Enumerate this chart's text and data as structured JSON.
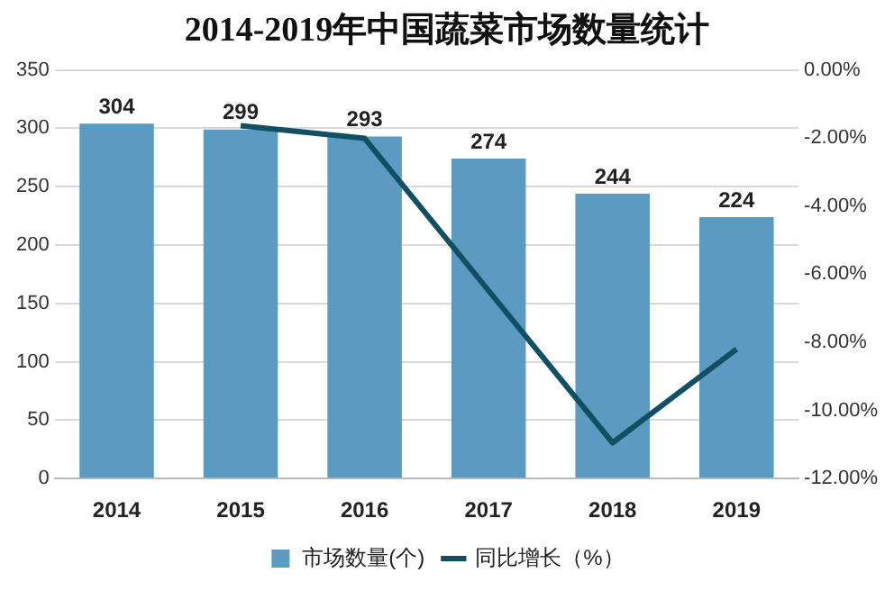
{
  "chart_data": {
    "type": "bar",
    "title": "2014-2019年中国蔬菜市场数量统计",
    "categories": [
      "2014",
      "2015",
      "2016",
      "2017",
      "2018",
      "2019"
    ],
    "series": [
      {
        "name": "市场数量(个)",
        "color": "#5b9bc2",
        "values": [
          304,
          299,
          293,
          274,
          244,
          224
        ],
        "value_labels": [
          "304",
          "299",
          "293",
          "274",
          "244",
          "224"
        ]
      },
      {
        "name": "同比增长（%）",
        "type": "line",
        "axis": "y2",
        "color": "#124f63",
        "values": [
          null,
          -1.64,
          -2.01,
          -6.48,
          -10.95,
          -8.2
        ]
      }
    ],
    "ylim": [
      0,
      350
    ],
    "yticks": [
      0,
      50,
      100,
      150,
      200,
      250,
      300,
      350
    ],
    "y2lim": [
      -12,
      0
    ],
    "y2ticks": [
      {
        "value": 0,
        "label": "0.00%"
      },
      {
        "value": -2,
        "label": "-2.00%"
      },
      {
        "value": -4,
        "label": "-4.00%"
      },
      {
        "value": -6,
        "label": "-6.00%"
      },
      {
        "value": -8,
        "label": "-8.00%"
      },
      {
        "value": -10,
        "label": "-10.00%"
      },
      {
        "value": -12,
        "label": "-12.00%"
      }
    ],
    "grid": "y",
    "legend": "bottom",
    "marker": "none",
    "line_style": "solid"
  }
}
